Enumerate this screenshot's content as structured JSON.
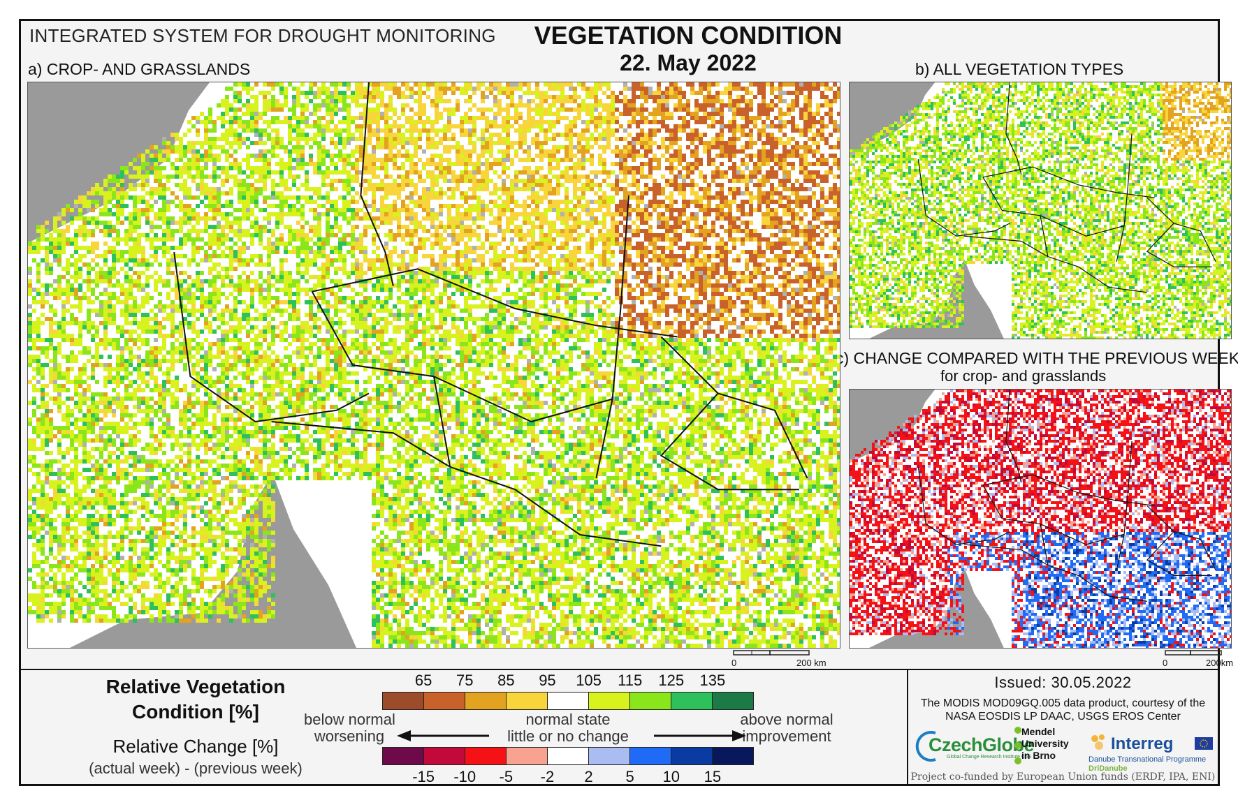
{
  "header": {
    "system_title": "INTEGRATED SYSTEM FOR DROUGHT MONITORING",
    "main_title": "VEGETATION CONDITION",
    "date": "22. May 2022"
  },
  "panels": {
    "a_label": "a) CROP- AND GRASSLANDS",
    "b_label": "b) ALL VEGETATION TYPES",
    "c_label": "c) CHANGE COMPARED WITH THE PREVIOUS WEEK",
    "c_sublabel": "for crop- and grasslands"
  },
  "scale_bars": {
    "main": {
      "zero": "0",
      "end": "200 km"
    },
    "small": {
      "zero": "0",
      "end": "200km"
    }
  },
  "legend": {
    "rvc_title_line1": "Relative Vegetation",
    "rvc_title_line2": "Condition [%]",
    "rc_title": "Relative Change [%]",
    "rc_subtitle": "(actual week) - (previous week)",
    "rvc_ticks": [
      "65",
      "75",
      "85",
      "95",
      "105",
      "115",
      "125",
      "135"
    ],
    "rvc_colors": [
      "#9c4b2b",
      "#c9612a",
      "#e3a21f",
      "#f7d53b",
      "#ffffff",
      "#d8f21d",
      "#8be51b",
      "#2ec05a",
      "#1b7a45"
    ],
    "rc_ticks": [
      "-15",
      "-10",
      "-5",
      "-2",
      "2",
      "5",
      "10",
      "15"
    ],
    "rc_colors": [
      "#6e0a4a",
      "#c20a3a",
      "#f41216",
      "#f7a38f",
      "#ffffff",
      "#a9bdf2",
      "#1f6bf5",
      "#0a3ba3",
      "#07185c"
    ],
    "left_line1": "below normal",
    "left_line2": "worsening",
    "mid_line1": "normal state",
    "mid_line2": "little or no change",
    "right_line1": "above normal",
    "right_line2": "improvement"
  },
  "footer": {
    "issued": "Issued: 30.05.2022",
    "credit": "The MODIS MOD09GQ.005 data product, courtesy of the NASA EOSDIS LP DAAC, USGS EROS Center",
    "czechglobe": "CzechGlobe",
    "czechglobe_sub": "Global Change Research Institute CAS",
    "mendel": "Mendel University in Brno",
    "interreg": "Interreg",
    "interreg_sub": "Danube Transnational Programme",
    "dridanube": "DriDanube",
    "funded": "Project co-funded by European Union funds (ERDF, IPA, ENI)"
  }
}
